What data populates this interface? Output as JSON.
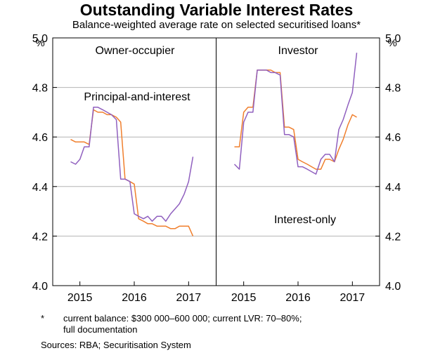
{
  "title": "Outstanding Variable Interest Rates",
  "subtitle": "Balance-weighted average rate on selected securitised loans*",
  "footnote": {
    "marker": "*",
    "line1": "current balance: $300 000–600 000; current LVR: 70–80%;",
    "line2": "full documentation"
  },
  "sources": "Sources:  RBA; Securitisation System",
  "colors": {
    "principal_and_interest": "#f07f2d",
    "interest_only": "#9060bf",
    "grid": "#b4b4b4"
  },
  "chart_data": [
    {
      "type": "line",
      "panel": "Owner-occupier",
      "unit_label": "%",
      "ylim": [
        4.0,
        5.0
      ],
      "yticks": [
        4.0,
        4.2,
        4.4,
        4.6,
        4.8,
        5.0
      ],
      "xlim": [
        2014.5,
        2017.5
      ],
      "xticks": [
        2015,
        2016,
        2017
      ],
      "annotations": [
        {
          "text": "Principal-and-interest",
          "series": "Principal-and-interest"
        }
      ],
      "series": [
        {
          "name": "Principal-and-interest",
          "x": [
            2014.83,
            2014.92,
            2015.0,
            2015.08,
            2015.17,
            2015.25,
            2015.33,
            2015.42,
            2015.5,
            2015.58,
            2015.67,
            2015.75,
            2015.83,
            2015.92,
            2016.0,
            2016.08,
            2016.17,
            2016.25,
            2016.33,
            2016.42,
            2016.5,
            2016.58,
            2016.67,
            2016.75,
            2016.83,
            2016.92,
            2017.0,
            2017.08
          ],
          "values": [
            4.59,
            4.58,
            4.58,
            4.58,
            4.57,
            4.71,
            4.7,
            4.7,
            4.69,
            4.69,
            4.68,
            4.66,
            4.43,
            4.42,
            4.41,
            4.27,
            4.26,
            4.25,
            4.25,
            4.24,
            4.24,
            4.24,
            4.23,
            4.23,
            4.24,
            4.24,
            4.24,
            4.2
          ]
        },
        {
          "name": "Interest-only",
          "x": [
            2014.83,
            2014.92,
            2015.0,
            2015.08,
            2015.17,
            2015.25,
            2015.33,
            2015.42,
            2015.5,
            2015.58,
            2015.67,
            2015.75,
            2015.83,
            2015.92,
            2016.0,
            2016.08,
            2016.17,
            2016.25,
            2016.33,
            2016.42,
            2016.5,
            2016.58,
            2016.67,
            2016.75,
            2016.83,
            2016.92,
            2017.0,
            2017.08
          ],
          "values": [
            4.5,
            4.49,
            4.51,
            4.56,
            4.56,
            4.72,
            4.72,
            4.71,
            4.7,
            4.69,
            4.67,
            4.43,
            4.43,
            4.42,
            4.29,
            4.28,
            4.27,
            4.28,
            4.26,
            4.28,
            4.28,
            4.26,
            4.29,
            4.31,
            4.33,
            4.37,
            4.42,
            4.52
          ]
        }
      ]
    },
    {
      "type": "line",
      "panel": "Investor",
      "unit_label": "%",
      "ylim": [
        4.0,
        5.0
      ],
      "yticks": [
        4.0,
        4.2,
        4.4,
        4.6,
        4.8,
        5.0
      ],
      "xlim": [
        2014.5,
        2017.5
      ],
      "xticks": [
        2015,
        2016,
        2017
      ],
      "annotations": [
        {
          "text": "Interest-only",
          "series": "Interest-only"
        }
      ],
      "series": [
        {
          "name": "Principal-and-interest",
          "x": [
            2014.83,
            2014.92,
            2015.0,
            2015.08,
            2015.17,
            2015.25,
            2015.33,
            2015.42,
            2015.5,
            2015.58,
            2015.67,
            2015.75,
            2015.83,
            2015.92,
            2016.0,
            2016.08,
            2016.17,
            2016.25,
            2016.33,
            2016.42,
            2016.5,
            2016.58,
            2016.67,
            2016.75,
            2016.83,
            2016.92,
            2017.0,
            2017.08
          ],
          "values": [
            4.56,
            4.56,
            4.7,
            4.72,
            4.72,
            4.87,
            4.87,
            4.87,
            4.87,
            4.86,
            4.86,
            4.64,
            4.64,
            4.63,
            4.51,
            4.5,
            4.49,
            4.48,
            4.47,
            4.47,
            4.51,
            4.51,
            4.5,
            4.55,
            4.59,
            4.65,
            4.69,
            4.68
          ]
        },
        {
          "name": "Interest-only",
          "x": [
            2014.83,
            2014.92,
            2015.0,
            2015.08,
            2015.17,
            2015.25,
            2015.33,
            2015.42,
            2015.5,
            2015.58,
            2015.67,
            2015.75,
            2015.83,
            2015.92,
            2016.0,
            2016.08,
            2016.17,
            2016.25,
            2016.33,
            2016.42,
            2016.5,
            2016.58,
            2016.67,
            2016.75,
            2016.83,
            2016.92,
            2017.0,
            2017.08
          ],
          "values": [
            4.49,
            4.47,
            4.66,
            4.7,
            4.7,
            4.87,
            4.87,
            4.87,
            4.86,
            4.86,
            4.85,
            4.61,
            4.61,
            4.6,
            4.48,
            4.48,
            4.47,
            4.46,
            4.45,
            4.51,
            4.53,
            4.53,
            4.5,
            4.63,
            4.67,
            4.73,
            4.78,
            4.94
          ]
        }
      ]
    }
  ]
}
